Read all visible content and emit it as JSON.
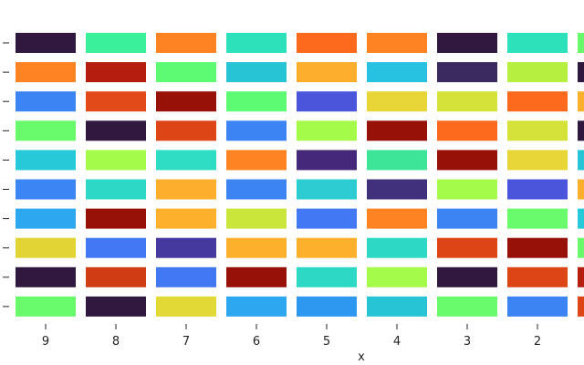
{
  "chart_data": {
    "type": "heatmap",
    "title": "",
    "xlabel": "x",
    "ylabel": "",
    "x_tick_labels": [
      "9",
      "8",
      "7",
      "6",
      "5",
      "4",
      "3",
      "2"
    ],
    "y_tick_labels": [
      "",
      "",
      "",
      "",
      "",
      "",
      "",
      "",
      "",
      ""
    ],
    "colormap": "turbo",
    "columns": [
      {
        "x": "9",
        "cells": [
          "#30183f",
          "#fe8322",
          "#3c84f4",
          "#69fb6b",
          "#27c8d7",
          "#3b86f4",
          "#2da8f0",
          "#e3d435",
          "#30183f",
          "#69fb6b"
        ]
      },
      {
        "x": "8",
        "cells": [
          "#3af09b",
          "#b51d0f",
          "#e34a1a",
          "#30183f",
          "#a5fb49",
          "#2ed8c7",
          "#981109",
          "#4378f5",
          "#d03d14",
          "#30183f"
        ]
      },
      {
        "x": "7",
        "cells": [
          "#fe8322",
          "#5dfb73",
          "#981109",
          "#dd4416",
          "#2fdcc4",
          "#fdae2c",
          "#fdb02b",
          "#4539a0",
          "#4378f5",
          "#e2d937"
        ]
      },
      {
        "x": "6",
        "cells": [
          "#2de1ba",
          "#27c4d6",
          "#5dfb73",
          "#3c84f4",
          "#fe8322",
          "#3c84f4",
          "#cae63b",
          "#fdb02b",
          "#981109",
          "#2da8f0"
        ]
      },
      {
        "x": "5",
        "cells": [
          "#fd6a1d",
          "#fdae2c",
          "#4a55dc",
          "#a5fb49",
          "#45287a",
          "#2dcbd2",
          "#4378f5",
          "#fdb02b",
          "#2dd9c4",
          "#2e98f0"
        ]
      },
      {
        "x": "4",
        "cells": [
          "#fe8322",
          "#27c1e1",
          "#e8d638",
          "#981109",
          "#3de598",
          "#41307c",
          "#fe8322",
          "#2dd9c4",
          "#a5fb49",
          "#27c4d6"
        ]
      },
      {
        "x": "3",
        "cells": [
          "#30183f",
          "#3a2a5f",
          "#d4e23a",
          "#fd6a1d",
          "#981109",
          "#a5fb49",
          "#3c84f4",
          "#dd4416",
          "#30183f",
          "#69fb6b"
        ]
      },
      {
        "x": "2",
        "cells": [
          "#2de1ba",
          "#b7ef41",
          "#fd6a1d",
          "#d4e23a",
          "#e8d638",
          "#4a55dc",
          "#69fb6b",
          "#981109",
          "#dd4416",
          "#3c84f4"
        ]
      },
      {
        "x": "",
        "cells": [
          "#69fb6b",
          "#30183f",
          "#fdb02b",
          "#30183f",
          "#27c4d6",
          "#fdae2c",
          "#27c8d7",
          "#69fb6b",
          "#b51d0f",
          "#dd4416"
        ]
      }
    ]
  }
}
